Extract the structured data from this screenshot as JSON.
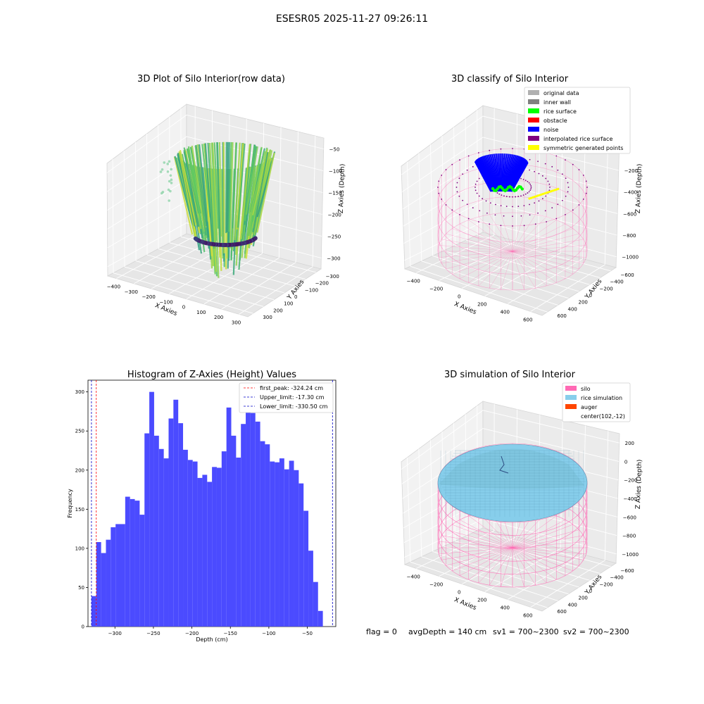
{
  "figure": {
    "suptitle": "ESESR05 2025-11-27 09:26:11",
    "footer": {
      "flag": "flag = 0",
      "avg_depth": "avgDepth = 140 cm",
      "sv1": "sv1 = 700~2300",
      "sv2": "sv2 = 700~2300"
    }
  },
  "chart_data": [
    {
      "id": "raw",
      "type": "scatter3d",
      "title": "3D Plot of Silo Interior(row data)",
      "xlabel": "X Axies",
      "ylabel": "Y Axies",
      "zlabel": "Z Axies (Depth)",
      "x_ticks": [
        "−400",
        "−300",
        "−200",
        "−100",
        "0",
        "100",
        "200",
        "300"
      ],
      "y_ticks": [
        "−300",
        "−200",
        "−100",
        "0",
        "100",
        "200",
        "300"
      ],
      "z_ticks": [
        "−50",
        "−100",
        "−150",
        "−200",
        "−250",
        "−300"
      ],
      "xlim": [
        -430,
        330
      ],
      "ylim": [
        -330,
        330
      ],
      "zlim": [
        -335,
        -20
      ],
      "colormap": "viridis"
    },
    {
      "id": "classify",
      "type": "scatter3d",
      "title": "3D classify of Silo Interior",
      "xlabel": "X Axies",
      "ylabel": "Y Axies",
      "zlabel": "Z Axies (Depth)",
      "x_ticks": [
        "−400",
        "−200",
        "0",
        "200",
        "400",
        "600"
      ],
      "y_ticks": [
        "−600",
        "−400",
        "−200",
        "0",
        "200",
        "400",
        "600"
      ],
      "z_ticks": [
        "0",
        "−200",
        "−400",
        "−600",
        "−800",
        "−1000"
      ],
      "legend": {
        "placement": "top-right",
        "items": [
          {
            "label": "original data",
            "color": "#b0b0b0"
          },
          {
            "label": "inner wall",
            "color": "#808080"
          },
          {
            "label": "rice surface",
            "color": "#00ff00"
          },
          {
            "label": "obstacle",
            "color": "#ff0000"
          },
          {
            "label": "noise",
            "color": "#0000ff"
          },
          {
            "label": "interpolated rice surface",
            "color": "#800080"
          },
          {
            "label": "symmetric generated points",
            "color": "#ffff00"
          }
        ]
      }
    },
    {
      "id": "hist",
      "type": "bar",
      "title": "Histogram of Z-Axies (Height) Values",
      "xlabel": "Depth (cm)",
      "ylabel": "Frequency",
      "xlim": [
        -335,
        -13
      ],
      "ylim": [
        0,
        315
      ],
      "x_ticks": [
        -300,
        -250,
        -200,
        -150,
        -100,
        -50
      ],
      "y_ticks": [
        0,
        50,
        100,
        150,
        200,
        250,
        300
      ],
      "bin_start": -330.5,
      "bin_width": 6.264,
      "bar_color": "#4b4bff",
      "values": [
        39,
        108,
        94,
        111,
        127,
        131,
        131,
        166,
        163,
        161,
        143,
        247,
        300,
        244,
        227,
        215,
        266,
        290,
        260,
        226,
        213,
        211,
        190,
        194,
        185,
        204,
        203,
        224,
        280,
        244,
        216,
        259,
        289,
        273,
        262,
        237,
        233,
        211,
        210,
        215,
        201,
        212,
        200,
        183,
        148,
        97,
        57,
        20
      ],
      "vlines": [
        {
          "label": "first_peak: -324.24 cm",
          "value": -324.24,
          "color": "#ff0000"
        },
        {
          "label": "Upper_limit: -17.30 cm",
          "value": -17.3,
          "color": "#0000c8"
        },
        {
          "label": "Lower_limit: -330.50 cm",
          "value": -330.5,
          "color": "#0000c8"
        }
      ],
      "legend_placement": "top-right"
    },
    {
      "id": "sim",
      "type": "surface3d",
      "title": "3D simulation of Silo Interior",
      "xlabel": "X Axies",
      "ylabel": "Y Axies",
      "zlabel": "Z Axies (Depth)",
      "x_ticks": [
        "−400",
        "−200",
        "0",
        "200",
        "400",
        "600"
      ],
      "y_ticks": [
        "−600",
        "−400",
        "−200",
        "0",
        "200",
        "400",
        "600"
      ],
      "z_ticks": [
        "200",
        "0",
        "−200",
        "−400",
        "−600",
        "−800",
        "−1000"
      ],
      "legend": {
        "placement": "top-right",
        "items": [
          {
            "label": "silo",
            "color": "#ff69b4"
          },
          {
            "label": "rice simulation",
            "color": "#87ceeb"
          },
          {
            "label": "auger",
            "color": "#ff4500"
          },
          {
            "label": "center(102,-12)",
            "color": "none"
          }
        ]
      }
    }
  ]
}
